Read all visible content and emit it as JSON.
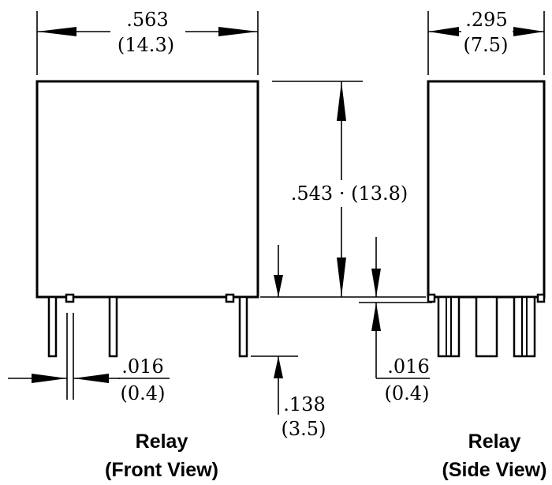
{
  "dimensions": {
    "width": {
      "inch": ".563",
      "mm": "(14.3)"
    },
    "depth": {
      "inch": ".295",
      "mm": "(7.5)"
    },
    "height": {
      "inch": ".543",
      "mm": "(13.8)"
    },
    "pin_length": {
      "inch": ".138",
      "mm": "(3.5)"
    },
    "pin_width_front": {
      "inch": ".016",
      "mm": "(0.4)"
    },
    "pin_width_side": {
      "inch": ".016",
      "mm": "(0.4)"
    }
  },
  "captions": {
    "front_title": "Relay",
    "front_subtitle": "(Front View)",
    "side_title": "Relay",
    "side_subtitle": "(Side View)"
  }
}
